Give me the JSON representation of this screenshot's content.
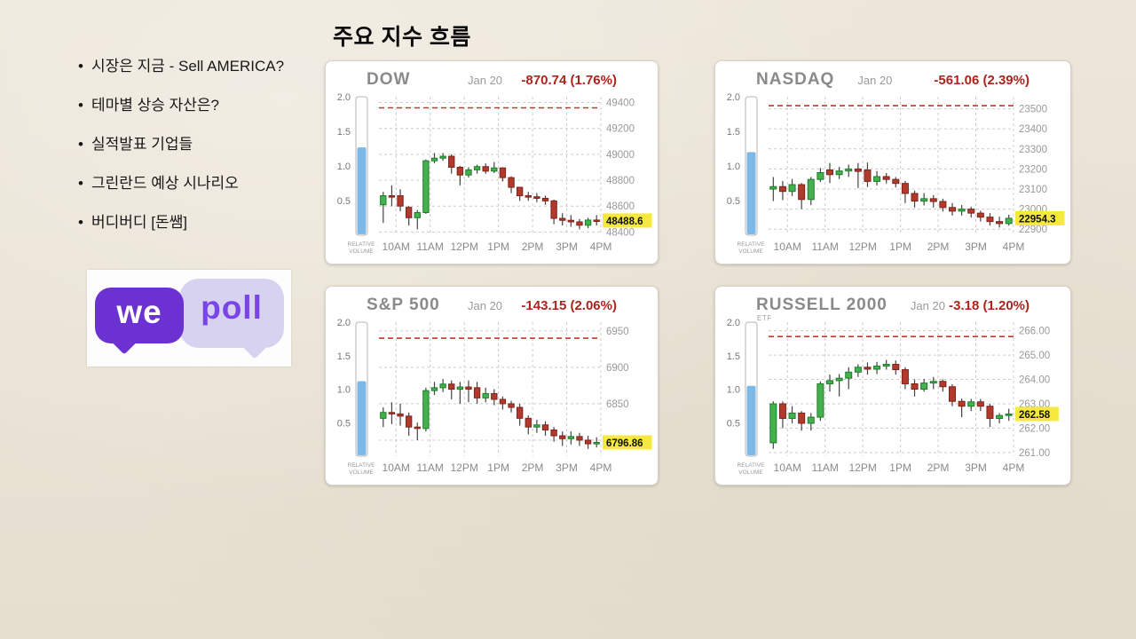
{
  "slide": {
    "title": "주요 지수 흐름"
  },
  "bullets": [
    "시장은 지금 - Sell AMERICA?",
    "테마별 상승 자산은?",
    "실적발표 기업들",
    "그린란드 예상 시나리오",
    "버디버디 [돈쌤]"
  ],
  "logo": {
    "left_text": "we",
    "right_text": "poll",
    "purple": "#6c31d1",
    "lavender": "#d8d2f1",
    "text_purple": "#7a45e6"
  },
  "colors": {
    "change_red": "#ad241c",
    "up_green": "#45b14e",
    "up_border": "#1d7c2a",
    "down_red": "#b23a2c",
    "down_border": "#7e241b",
    "wick": "#444444",
    "volume_blue": "#7cb9e8",
    "badge_yellow": "#f6e93d",
    "prev_close_line": "#c0392b",
    "grid": "#cccccc",
    "axis_text": "#999999",
    "xaxis_text": "#8a8a8a",
    "title_gray": "#8a8a8a"
  },
  "chart_data": [
    {
      "type": "candlestick",
      "title": "DOW",
      "subtitle": "",
      "date": "Jan 20",
      "change": "-870.74 (1.76%)",
      "last_price_label": "48488.6",
      "last_price": 48488.6,
      "prev_close": 49359.3,
      "ylim": [
        48375,
        49445
      ],
      "yticks": [
        {
          "v": 49400,
          "label": "49400"
        },
        {
          "v": 49200,
          "label": "49200"
        },
        {
          "v": 49000,
          "label": "49000"
        },
        {
          "v": 48800,
          "label": "48800"
        },
        {
          "v": 48600,
          "label": "48600"
        },
        {
          "v": 48400,
          "label": "48400"
        }
      ],
      "x_labels": [
        "10AM",
        "11AM",
        "12PM",
        "1PM",
        "2PM",
        "3PM",
        "4PM"
      ],
      "left_axis": {
        "ticks": [
          "2.0",
          "1.5",
          "1.0",
          "0.5"
        ],
        "label": "RELATIVE VOLUME",
        "bar_value": 1.27,
        "bar_max": 2.0
      },
      "candles": [
        [
          48610,
          48710,
          48470,
          48680
        ],
        [
          48680,
          48760,
          48600,
          48670
        ],
        [
          48680,
          48730,
          48560,
          48600
        ],
        [
          48590,
          48600,
          48450,
          48510
        ],
        [
          48510,
          48570,
          48420,
          48550
        ],
        [
          48550,
          48960,
          48540,
          48950
        ],
        [
          48950,
          49010,
          48930,
          48970
        ],
        [
          48970,
          49010,
          48950,
          48985
        ],
        [
          48985,
          49000,
          48850,
          48900
        ],
        [
          48900,
          48910,
          48760,
          48840
        ],
        [
          48840,
          48900,
          48820,
          48880
        ],
        [
          48880,
          48920,
          48850,
          48905
        ],
        [
          48905,
          48930,
          48850,
          48870
        ],
        [
          48870,
          48940,
          48855,
          48895
        ],
        [
          48895,
          48900,
          48790,
          48820
        ],
        [
          48820,
          48830,
          48700,
          48745
        ],
        [
          48745,
          48750,
          48640,
          48680
        ],
        [
          48680,
          48710,
          48640,
          48672
        ],
        [
          48672,
          48700,
          48630,
          48660
        ],
        [
          48660,
          48680,
          48610,
          48640
        ],
        [
          48640,
          48650,
          48460,
          48505
        ],
        [
          48505,
          48545,
          48450,
          48490
        ],
        [
          48490,
          48530,
          48440,
          48478
        ],
        [
          48478,
          48500,
          48420,
          48452
        ],
        [
          48452,
          48510,
          48430,
          48492
        ],
        [
          48492,
          48530,
          48450,
          48488.6
        ]
      ]
    },
    {
      "type": "candlestick",
      "title": "NASDAQ",
      "subtitle": "",
      "date": "Jan 20",
      "change": "-561.06 (2.39%)",
      "last_price_label": "22954.3",
      "last_price": 22954.3,
      "prev_close": 23515.4,
      "ylim": [
        22870,
        23560
      ],
      "yticks": [
        {
          "v": 23500,
          "label": "23500"
        },
        {
          "v": 23400,
          "label": "23400"
        },
        {
          "v": 23300,
          "label": "23300"
        },
        {
          "v": 23200,
          "label": "23200"
        },
        {
          "v": 23100,
          "label": "23100"
        },
        {
          "v": 23000,
          "label": "23000"
        },
        {
          "v": 22900,
          "label": "22900"
        }
      ],
      "x_labels": [
        "10AM",
        "11AM",
        "12PM",
        "1PM",
        "2PM",
        "3PM",
        "4PM"
      ],
      "left_axis": {
        "ticks": [
          "2.0",
          "1.5",
          "1.0",
          "0.5"
        ],
        "label": "RELATIVE VOLUME",
        "bar_value": 1.2,
        "bar_max": 2.0
      },
      "candles": [
        [
          23100,
          23160,
          23040,
          23112
        ],
        [
          23112,
          23140,
          23045,
          23088
        ],
        [
          23088,
          23150,
          23065,
          23122
        ],
        [
          23122,
          23130,
          23000,
          23048
        ],
        [
          23048,
          23160,
          23020,
          23148
        ],
        [
          23148,
          23205,
          23135,
          23182
        ],
        [
          23195,
          23230,
          23130,
          23172
        ],
        [
          23172,
          23210,
          23150,
          23190
        ],
        [
          23190,
          23222,
          23160,
          23200
        ],
        [
          23200,
          23230,
          23105,
          23188
        ],
        [
          23195,
          23232,
          23110,
          23138
        ],
        [
          23138,
          23190,
          23118,
          23162
        ],
        [
          23162,
          23180,
          23128,
          23148
        ],
        [
          23148,
          23160,
          23108,
          23128
        ],
        [
          23128,
          23140,
          23030,
          23078
        ],
        [
          23078,
          23092,
          23008,
          23040
        ],
        [
          23040,
          23080,
          23018,
          23052
        ],
        [
          23052,
          23070,
          23008,
          23038
        ],
        [
          23038,
          23052,
          22988,
          23008
        ],
        [
          23008,
          23030,
          22968,
          22990
        ],
        [
          22990,
          23020,
          22968,
          23000
        ],
        [
          23000,
          23012,
          22958,
          22980
        ],
        [
          22980,
          22992,
          22938,
          22960
        ],
        [
          22960,
          22980,
          22918,
          22938
        ],
        [
          22938,
          22962,
          22908,
          22928
        ],
        [
          22928,
          22972,
          22918,
          22954.3
        ]
      ]
    },
    {
      "type": "candlestick",
      "title": "S&P 500",
      "subtitle": "",
      "date": "Jan 20",
      "change": "-143.15 (2.06%)",
      "last_price_label": "6796.86",
      "last_price": 6796.86,
      "prev_close": 6940.0,
      "ylim": [
        6778,
        6962
      ],
      "yticks": [
        {
          "v": 6950,
          "label": "6950"
        },
        {
          "v": 6900,
          "label": "6900"
        },
        {
          "v": 6850,
          "label": "6850"
        },
        {
          "v": 6800,
          "label": ""
        }
      ],
      "x_labels": [
        "10AM",
        "11AM",
        "12PM",
        "1PM",
        "2PM",
        "3PM",
        "4PM"
      ],
      "left_axis": {
        "ticks": [
          "2.0",
          "1.5",
          "1.0",
          "0.5"
        ],
        "label": "RELATIVE VOLUME",
        "bar_value": 1.12,
        "bar_max": 2.0
      },
      "candles": [
        [
          6830,
          6845,
          6818,
          6838
        ],
        [
          6838,
          6852,
          6822,
          6836
        ],
        [
          6836,
          6850,
          6820,
          6833
        ],
        [
          6833,
          6838,
          6806,
          6818
        ],
        [
          6818,
          6824,
          6800,
          6816
        ],
        [
          6816,
          6872,
          6812,
          6868
        ],
        [
          6868,
          6880,
          6862,
          6872
        ],
        [
          6872,
          6884,
          6866,
          6877
        ],
        [
          6877,
          6882,
          6856,
          6870
        ],
        [
          6870,
          6880,
          6850,
          6873
        ],
        [
          6873,
          6882,
          6852,
          6870
        ],
        [
          6872,
          6880,
          6850,
          6858
        ],
        [
          6858,
          6872,
          6852,
          6864
        ],
        [
          6864,
          6870,
          6848,
          6856
        ],
        [
          6856,
          6860,
          6842,
          6850
        ],
        [
          6850,
          6854,
          6838,
          6845
        ],
        [
          6845,
          6850,
          6820,
          6830
        ],
        [
          6830,
          6834,
          6808,
          6818
        ],
        [
          6818,
          6828,
          6810,
          6821
        ],
        [
          6821,
          6826,
          6806,
          6814
        ],
        [
          6814,
          6818,
          6798,
          6806
        ],
        [
          6806,
          6812,
          6792,
          6802
        ],
        [
          6802,
          6812,
          6794,
          6805
        ],
        [
          6805,
          6810,
          6792,
          6800
        ],
        [
          6800,
          6806,
          6788,
          6795
        ],
        [
          6795,
          6804,
          6790,
          6796.86
        ]
      ]
    },
    {
      "type": "candlestick",
      "title": "RUSSELL 2000",
      "subtitle": "ETF",
      "date": "Jan 20",
      "change": "-3.18 (1.20%)",
      "last_price_label": "262.58",
      "last_price": 262.58,
      "prev_close": 265.76,
      "ylim": [
        260.85,
        266.35
      ],
      "yticks": [
        {
          "v": 266,
          "label": "266.00"
        },
        {
          "v": 265,
          "label": "265.00"
        },
        {
          "v": 264,
          "label": "264.00"
        },
        {
          "v": 263,
          "label": "263.00"
        },
        {
          "v": 262,
          "label": "262.00"
        },
        {
          "v": 261,
          "label": "261.00"
        }
      ],
      "x_labels": [
        "10AM",
        "11AM",
        "12PM",
        "1PM",
        "2PM",
        "3PM",
        "4PM"
      ],
      "left_axis": {
        "ticks": [
          "2.0",
          "1.5",
          "1.0",
          "0.5"
        ],
        "label": "RELATIVE VOLUME",
        "bar_value": 1.05,
        "bar_max": 2.0
      },
      "candles": [
        [
          261.4,
          263.1,
          261.15,
          263.0
        ],
        [
          263.0,
          263.1,
          262.0,
          262.4
        ],
        [
          262.4,
          262.9,
          262.2,
          262.62
        ],
        [
          262.62,
          262.7,
          261.9,
          262.2
        ],
        [
          262.2,
          262.62,
          261.9,
          262.45
        ],
        [
          262.45,
          263.92,
          262.3,
          263.82
        ],
        [
          263.82,
          264.2,
          263.5,
          263.95
        ],
        [
          263.95,
          264.22,
          263.3,
          264.05
        ],
        [
          264.05,
          264.5,
          263.6,
          264.3
        ],
        [
          264.3,
          264.62,
          264.1,
          264.5
        ],
        [
          264.5,
          264.7,
          264.2,
          264.42
        ],
        [
          264.42,
          264.72,
          264.22,
          264.55
        ],
        [
          264.55,
          264.8,
          264.4,
          264.62
        ],
        [
          264.62,
          264.78,
          264.2,
          264.4
        ],
        [
          264.4,
          264.5,
          263.6,
          263.82
        ],
        [
          263.82,
          264.0,
          263.3,
          263.6
        ],
        [
          263.6,
          264.02,
          263.5,
          263.85
        ],
        [
          263.85,
          264.1,
          263.6,
          263.92
        ],
        [
          263.92,
          264.0,
          263.5,
          263.7
        ],
        [
          263.7,
          263.8,
          262.9,
          263.1
        ],
        [
          263.1,
          263.22,
          262.45,
          262.9
        ],
        [
          262.9,
          263.2,
          262.7,
          263.08
        ],
        [
          263.08,
          263.2,
          262.7,
          262.9
        ],
        [
          262.9,
          263.0,
          262.05,
          262.4
        ],
        [
          262.4,
          262.62,
          262.2,
          262.52
        ],
        [
          262.52,
          262.8,
          262.3,
          262.58
        ]
      ]
    }
  ]
}
